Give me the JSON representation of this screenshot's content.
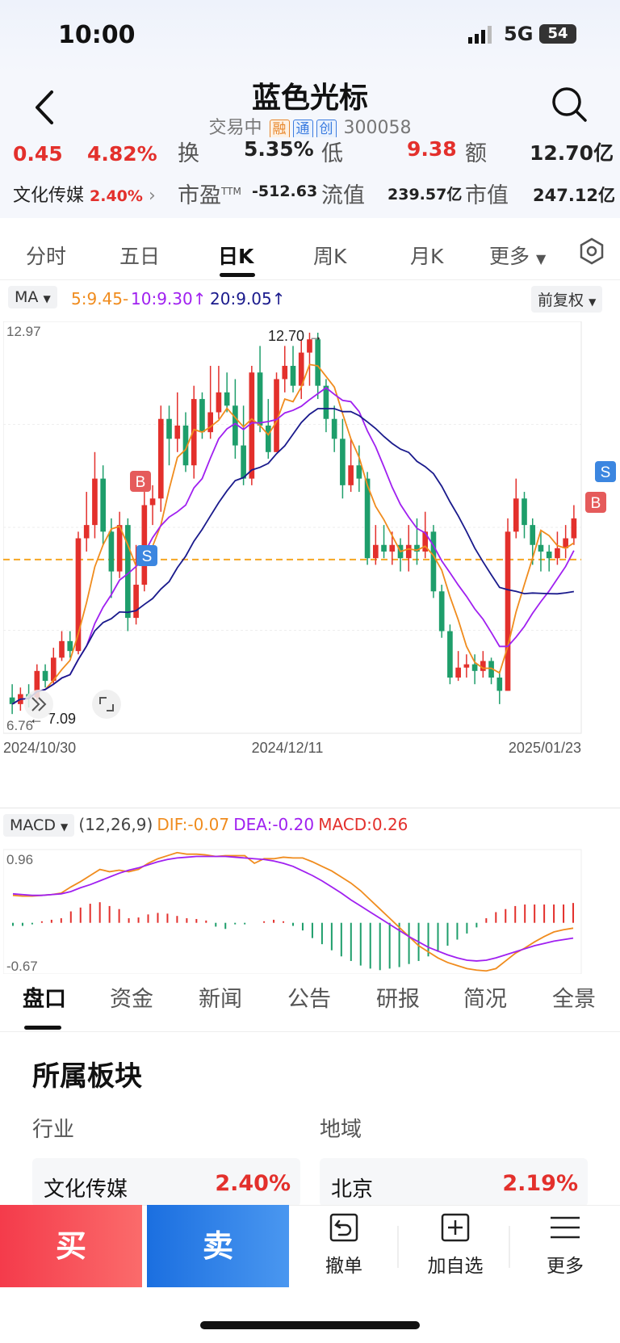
{
  "status_bar": {
    "time": "10:00",
    "network": "5G",
    "battery": "54"
  },
  "header": {
    "stock_name": "蓝色光标",
    "trade_status": "交易中",
    "tags": [
      "融",
      "通",
      "创"
    ],
    "code": "300058"
  },
  "quote": {
    "change": "0.45",
    "change_pct": "4.82%",
    "turnover_label": "换",
    "turnover": "5.35%",
    "low_label": "低",
    "low": "9.38",
    "amount_label": "额",
    "amount": "12.70亿",
    "sector_name": "文化传媒",
    "sector_pct": "2.40%",
    "pe_label": "市盈",
    "pe_sup": "TTM",
    "pe": "-512.63",
    "float_cap_label": "流值",
    "float_cap": "239.57亿",
    "mkt_cap_label": "市值",
    "mkt_cap": "247.12亿"
  },
  "period_tabs": [
    "分时",
    "五日",
    "日K",
    "周K",
    "月K",
    "更多"
  ],
  "active_period_tab": "日K",
  "ma_legend": {
    "selector": "MA",
    "ma5": "5:9.45-",
    "ma10": "10:9.30",
    "ma20": "20:9.05",
    "adjust": "前复权"
  },
  "colors": {
    "up": "#e3302c",
    "down": "#1e9e6b",
    "ma5": "#f08c1e",
    "ma10": "#a020f0",
    "ma20": "#1a1a8c",
    "dif": "#f08c1e",
    "dea": "#a020f0",
    "ref_line": "#f5a623"
  },
  "chart_data": [
    {
      "type": "candlestick",
      "y_max_label": "12.97",
      "y_min_label": "6.76",
      "ylim": [
        6.76,
        12.97
      ],
      "x_labels": [
        "2024/10/30",
        "2024/12/11",
        "2025/01/23"
      ],
      "high_annotation": "12.70",
      "low_annotation": "7.09",
      "markers": [
        "B",
        "S",
        "B",
        "S"
      ],
      "ref_price": 9.38,
      "candles": [
        [
          7.3,
          7.2,
          7.5,
          7.05
        ],
        [
          7.2,
          7.35,
          7.45,
          7.1
        ],
        [
          7.35,
          7.3,
          7.5,
          7.15
        ],
        [
          7.3,
          7.7,
          7.8,
          7.25
        ],
        [
          7.7,
          7.55,
          7.8,
          7.45
        ],
        [
          7.55,
          7.9,
          8.05,
          7.5
        ],
        [
          7.9,
          8.15,
          8.3,
          7.85
        ],
        [
          8.15,
          8.0,
          8.3,
          7.9
        ],
        [
          8.0,
          9.7,
          9.8,
          7.95
        ],
        [
          9.7,
          9.9,
          10.4,
          9.5
        ],
        [
          9.9,
          10.6,
          11.0,
          9.7
        ],
        [
          10.6,
          9.8,
          10.8,
          9.6
        ],
        [
          9.8,
          9.2,
          10.0,
          8.8
        ],
        [
          9.2,
          9.9,
          10.1,
          9.1
        ],
        [
          9.9,
          8.5,
          10.0,
          8.3
        ],
        [
          8.5,
          9.0,
          9.6,
          8.4
        ],
        [
          9.0,
          10.2,
          10.4,
          8.9
        ],
        [
          10.2,
          10.3,
          10.5,
          9.9
        ],
        [
          10.3,
          11.5,
          11.7,
          10.1
        ],
        [
          11.5,
          11.2,
          11.7,
          10.8
        ],
        [
          11.2,
          11.4,
          11.9,
          11.0
        ],
        [
          11.4,
          10.8,
          11.6,
          10.7
        ],
        [
          10.8,
          11.8,
          12.0,
          10.6
        ],
        [
          11.8,
          11.3,
          11.9,
          11.2
        ],
        [
          11.3,
          11.6,
          12.3,
          11.2
        ],
        [
          11.6,
          11.9,
          12.3,
          11.5
        ],
        [
          11.9,
          11.7,
          12.2,
          11.6
        ],
        [
          11.7,
          11.1,
          12.1,
          10.9
        ],
        [
          11.1,
          10.6,
          11.7,
          10.5
        ],
        [
          10.6,
          12.2,
          12.3,
          10.5
        ],
        [
          12.2,
          11.4,
          12.6,
          11.3
        ],
        [
          11.4,
          11.0,
          11.8,
          10.9
        ],
        [
          11.0,
          12.1,
          12.2,
          11.0
        ],
        [
          12.1,
          12.3,
          12.6,
          11.9
        ],
        [
          12.3,
          12.0,
          12.6,
          11.9
        ],
        [
          12.0,
          12.5,
          12.7,
          11.8
        ],
        [
          12.5,
          12.7,
          12.8,
          12.0
        ],
        [
          12.7,
          12.0,
          12.8,
          11.8
        ],
        [
          12.0,
          11.5,
          12.1,
          11.3
        ],
        [
          11.5,
          11.2,
          11.7,
          11.0
        ],
        [
          11.2,
          10.5,
          11.5,
          10.3
        ],
        [
          10.5,
          10.8,
          11.2,
          10.4
        ],
        [
          10.8,
          10.6,
          11.1,
          10.4
        ],
        [
          10.6,
          9.4,
          10.7,
          9.3
        ],
        [
          9.4,
          9.6,
          9.9,
          9.3
        ],
        [
          9.6,
          9.5,
          9.9,
          9.4
        ],
        [
          9.5,
          9.6,
          9.8,
          9.3
        ],
        [
          9.6,
          9.4,
          9.7,
          9.2
        ],
        [
          9.4,
          9.6,
          9.9,
          9.2
        ],
        [
          9.6,
          9.5,
          10.0,
          9.3
        ],
        [
          9.5,
          9.8,
          10.1,
          9.4
        ],
        [
          9.8,
          8.9,
          9.9,
          8.8
        ],
        [
          8.9,
          8.3,
          9.0,
          8.2
        ],
        [
          8.3,
          7.6,
          8.4,
          7.5
        ],
        [
          7.6,
          7.75,
          8.0,
          7.55
        ],
        [
          7.75,
          7.8,
          7.95,
          7.6
        ],
        [
          7.8,
          7.7,
          7.95,
          7.5
        ],
        [
          7.7,
          7.85,
          8.0,
          7.6
        ],
        [
          7.85,
          7.6,
          7.9,
          7.5
        ],
        [
          7.6,
          7.4,
          7.7,
          7.2
        ],
        [
          7.4,
          9.8,
          10.0,
          7.4
        ],
        [
          9.8,
          10.3,
          10.6,
          9.7
        ],
        [
          10.3,
          9.9,
          10.4,
          9.7
        ],
        [
          9.9,
          9.6,
          10.0,
          9.3
        ],
        [
          9.6,
          9.5,
          9.8,
          9.2
        ],
        [
          9.5,
          9.4,
          9.6,
          9.2
        ],
        [
          9.4,
          9.55,
          9.8,
          9.3
        ],
        [
          9.55,
          9.7,
          9.9,
          9.4
        ],
        [
          9.7,
          10.0,
          10.2,
          9.6
        ]
      ]
    },
    {
      "type": "macd",
      "title": "MACD",
      "params": "(12,26,9)",
      "dif_label": "DIF:-0.07",
      "dea_label": "DEA:-0.20",
      "macd_label": "MACD:0.26",
      "ylim": [
        -0.67,
        0.96
      ],
      "y_max_label": "0.96",
      "y_min_label": "-0.67",
      "dif": [
        0.36,
        0.35,
        0.35,
        0.36,
        0.37,
        0.39,
        0.47,
        0.54,
        0.62,
        0.7,
        0.67,
        0.69,
        0.67,
        0.7,
        0.78,
        0.84,
        0.88,
        0.92,
        0.9,
        0.9,
        0.89,
        0.87,
        0.88,
        0.88,
        0.88,
        0.78,
        0.84,
        0.84,
        0.86,
        0.85,
        0.85,
        0.8,
        0.74,
        0.68,
        0.6,
        0.52,
        0.42,
        0.3,
        0.18,
        0.06,
        -0.06,
        -0.18,
        -0.3,
        -0.38,
        -0.46,
        -0.52,
        -0.56,
        -0.6,
        -0.62,
        -0.63,
        -0.6,
        -0.5,
        -0.4,
        -0.33,
        -0.25,
        -0.18,
        -0.12,
        -0.09,
        -0.07
      ],
      "dea": [
        0.38,
        0.37,
        0.36,
        0.36,
        0.37,
        0.38,
        0.41,
        0.46,
        0.5,
        0.55,
        0.6,
        0.65,
        0.69,
        0.72,
        0.76,
        0.8,
        0.83,
        0.85,
        0.86,
        0.87,
        0.87,
        0.87,
        0.87,
        0.86,
        0.85,
        0.84,
        0.83,
        0.81,
        0.78,
        0.74,
        0.68,
        0.62,
        0.55,
        0.47,
        0.39,
        0.3,
        0.22,
        0.14,
        0.06,
        -0.02,
        -0.1,
        -0.18,
        -0.25,
        -0.32,
        -0.37,
        -0.42,
        -0.46,
        -0.49,
        -0.5,
        -0.49,
        -0.46,
        -0.42,
        -0.38,
        -0.34,
        -0.3,
        -0.27,
        -0.24,
        -0.22,
        -0.2
      ],
      "macd": [
        -0.04,
        -0.04,
        -0.02,
        0.02,
        0.04,
        0.06,
        0.15,
        0.2,
        0.25,
        0.27,
        0.22,
        0.18,
        0.06,
        0.07,
        0.11,
        0.13,
        0.12,
        0.09,
        0.06,
        0.05,
        0.03,
        -0.05,
        -0.08,
        -0.02,
        -0.02,
        0.0,
        0.02,
        0.04,
        0.02,
        -0.04,
        -0.1,
        -0.2,
        -0.28,
        -0.36,
        -0.44,
        -0.5,
        -0.56,
        -0.6,
        -0.62,
        -0.6,
        -0.58,
        -0.54,
        -0.5,
        -0.44,
        -0.38,
        -0.3,
        -0.22,
        -0.14,
        -0.06,
        0.06,
        0.14,
        0.18,
        0.22,
        0.24,
        0.24,
        0.24,
        0.24,
        0.24,
        0.26
      ]
    }
  ],
  "section_tabs": [
    "盘口",
    "资金",
    "新闻",
    "公告",
    "研报",
    "简况",
    "全景"
  ],
  "active_section_tab": "盘口",
  "sector_section": {
    "title": "所属板块",
    "industry_label": "行业",
    "region_label": "地域",
    "industry": {
      "name": "文化传媒",
      "pct": "2.40%"
    },
    "region": {
      "name": "北京",
      "pct": "2.19%"
    }
  },
  "action_bar": {
    "buy": "买",
    "sell": "卖",
    "cancel": "撤单",
    "add_watch": "加自选",
    "more": "更多"
  }
}
